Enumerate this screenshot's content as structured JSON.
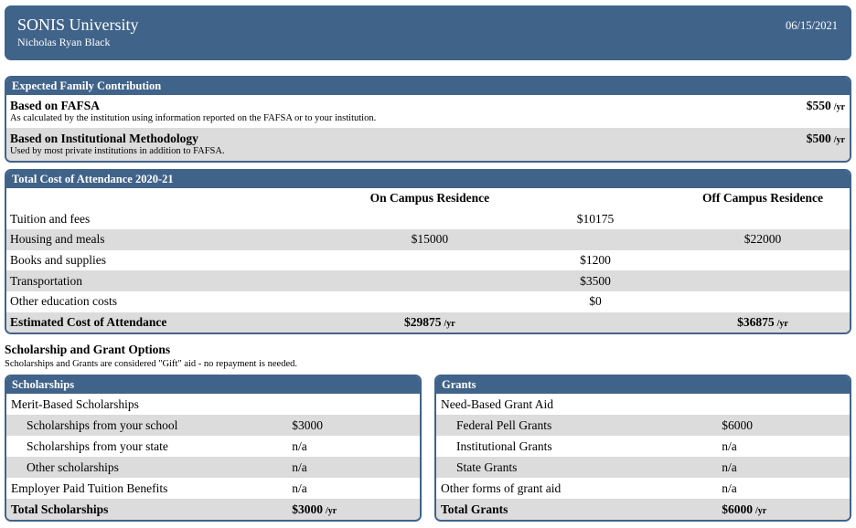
{
  "header": {
    "title": "SONIS University",
    "student_name": "Nicholas Ryan Black",
    "date": "06/15/2021"
  },
  "colors": {
    "primary_blue": "#40638A",
    "row_gray": "#DCDCDC"
  },
  "efc": {
    "title": "Expected Family Contribution",
    "rows": [
      {
        "title": "Based on FAFSA",
        "description": "As calculated by the institution using information reported on the FAFSA or to your institution.",
        "amount": "$550",
        "unit": "/yr"
      },
      {
        "title": "Based on Institutional Methodology",
        "description": "Used by most private institutions in addition to FAFSA.",
        "amount": "$500",
        "unit": "/yr"
      }
    ]
  },
  "coa": {
    "title": "Total Cost of Attendance 2020-21",
    "on_campus_header": "On Campus Residence",
    "off_campus_header": "Off Campus Residence",
    "rows": [
      {
        "label": "Tuition and fees",
        "on": "",
        "on_unit": "",
        "both": "$10175",
        "off": "",
        "off_unit": ""
      },
      {
        "label": "Housing and meals",
        "on": "$15000",
        "on_unit": "",
        "both": "",
        "off": "$22000",
        "off_unit": ""
      },
      {
        "label": "Books and supplies",
        "on": "",
        "on_unit": "",
        "both": "$1200",
        "off": "",
        "off_unit": ""
      },
      {
        "label": "Transportation",
        "on": "",
        "on_unit": "",
        "both": "$3500",
        "off": "",
        "off_unit": ""
      },
      {
        "label": "Other education costs",
        "on": "",
        "on_unit": "",
        "both": "$0",
        "off": "",
        "off_unit": ""
      },
      {
        "label": "Estimated Cost of Attendance",
        "on": "$29875",
        "on_unit": "/yr",
        "both": "",
        "off": "$36875",
        "off_unit": "/yr"
      }
    ]
  },
  "options": {
    "title": "Scholarship and Grant Options",
    "subtitle": "Scholarships and Grants are considered \"Gift\" aid - no repayment is needed."
  },
  "scholarships": {
    "title": "Scholarships",
    "rows": [
      {
        "label": "Merit-Based Scholarships",
        "value": "",
        "unit": ""
      },
      {
        "label": "Scholarships from your school",
        "value": "$3000",
        "unit": ""
      },
      {
        "label": "Scholarships from your state",
        "value": "n/a",
        "unit": ""
      },
      {
        "label": "Other scholarships",
        "value": "n/a",
        "unit": ""
      },
      {
        "label": "Employer Paid Tuition Benefits",
        "value": "n/a",
        "unit": ""
      },
      {
        "label": "Total Scholarships",
        "value": "$3000",
        "unit": "/yr"
      }
    ]
  },
  "grants": {
    "title": "Grants",
    "rows": [
      {
        "label": "Need-Based Grant Aid",
        "value": "",
        "unit": ""
      },
      {
        "label": "Federal Pell Grants",
        "value": "$6000",
        "unit": ""
      },
      {
        "label": "Institutional Grants",
        "value": "n/a",
        "unit": ""
      },
      {
        "label": "State Grants",
        "value": "n/a",
        "unit": ""
      },
      {
        "label": "Other forms of grant aid",
        "value": "n/a",
        "unit": ""
      },
      {
        "label": "Total Grants",
        "value": "$6000",
        "unit": "/yr"
      }
    ]
  }
}
